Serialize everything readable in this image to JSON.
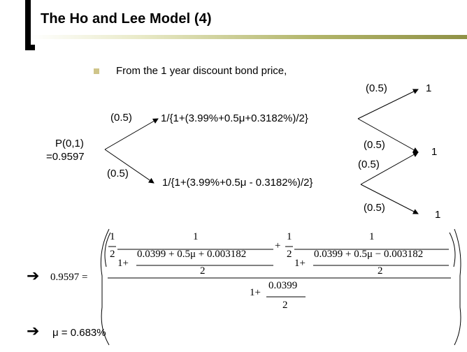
{
  "title": "The Ho and Lee Model (4)",
  "bullet_text": "From the 1 year discount bond price,",
  "tree": {
    "root_line1": "P(0,1)",
    "root_line2": "=0.9597",
    "prob_up": "(0.5)",
    "prob_down": "(0.5)",
    "node_up": "1/{1+(3.99%+0.5μ+0.3182%)/2}",
    "node_down": "1/{1+(3.99%+0.5μ - 0.3182%)/2}",
    "prob_uu": "(0.5)",
    "prob_ud": "(0.5)",
    "prob_du": "(0.5)",
    "prob_dd": "(0.5)",
    "leaf_top": "1",
    "leaf_mid": "1",
    "leaf_bottom": "1"
  },
  "equation": {
    "lhs": "0.9597 =",
    "half": "1",
    "two": "2",
    "one": "1",
    "one_plus": "1+",
    "den_up": "0.0399 + 0.5μ + 0.003182",
    "den_down": "0.0399 + 0.5μ − 0.003182",
    "plus": "+",
    "outer_den_num": "0.0399",
    "outer_den_den": "2"
  },
  "result": "μ = 0.683%",
  "icons": {
    "arrow": "➔"
  }
}
